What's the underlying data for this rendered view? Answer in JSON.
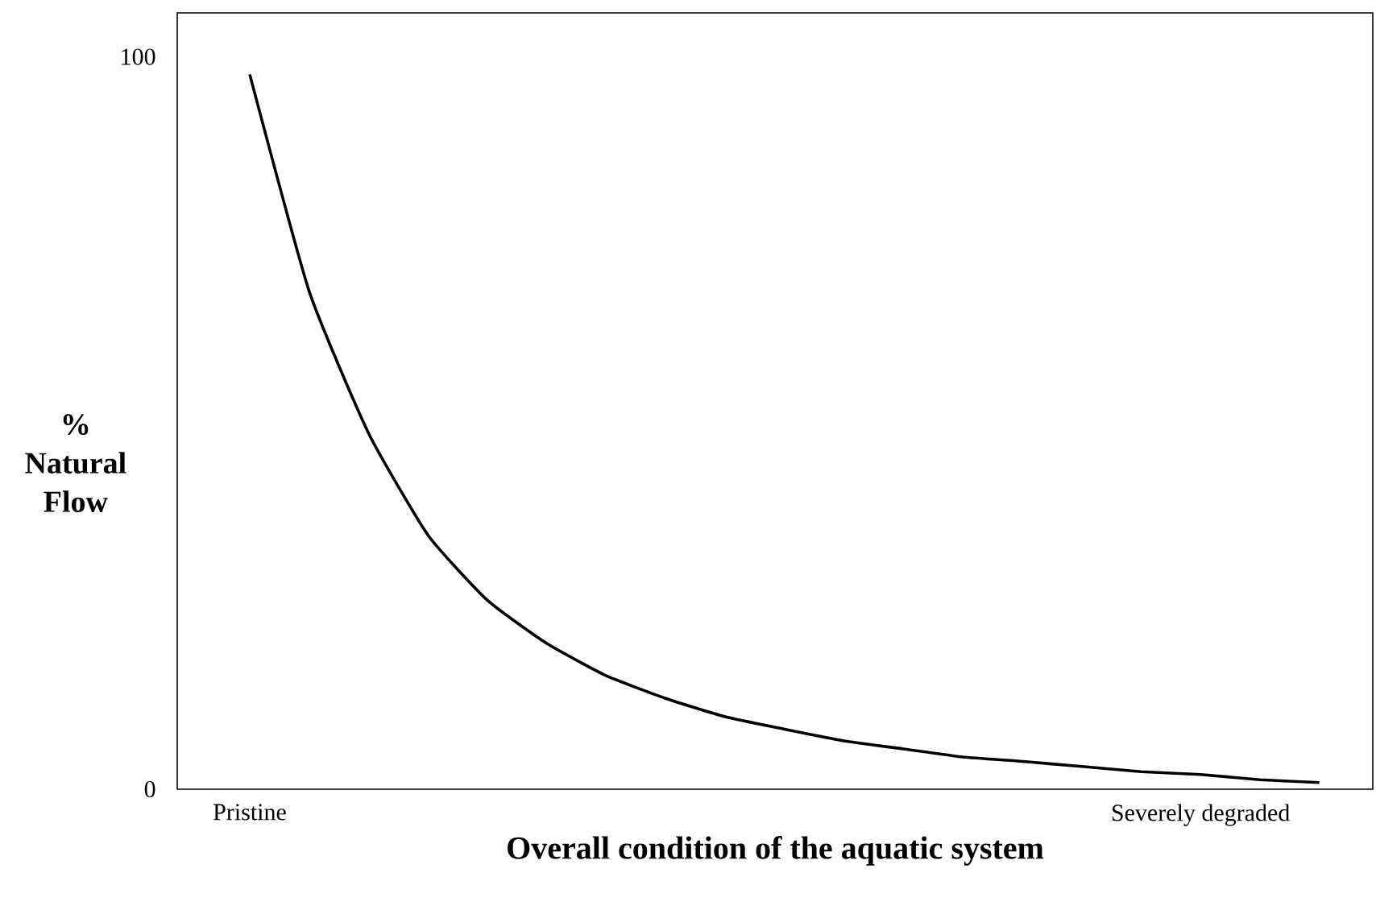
{
  "chart_data": {
    "type": "line",
    "xlabel": "Overall condition of the aquatic system",
    "ylabel": "% Natural Flow",
    "categories": [
      "Pristine",
      null,
      null,
      null,
      null,
      null,
      null,
      null,
      null,
      null,
      null,
      null,
      null,
      null,
      null,
      null,
      "Severely degraded",
      null,
      null
    ],
    "ylim": [
      0,
      106
    ],
    "yticks": [
      0,
      100
    ],
    "grid": false,
    "marker": "none",
    "line_style": "solid",
    "series": [
      {
        "color": "#000000",
        "values": [
          97.6,
          68.0,
          48.6,
          34.7,
          25.8,
          19.9,
          15.5,
          12.4,
          9.9,
          8.2,
          6.6,
          5.5,
          4.4,
          3.8,
          3.1,
          2.4,
          2.0,
          1.3,
          0.9
        ]
      }
    ]
  }
}
